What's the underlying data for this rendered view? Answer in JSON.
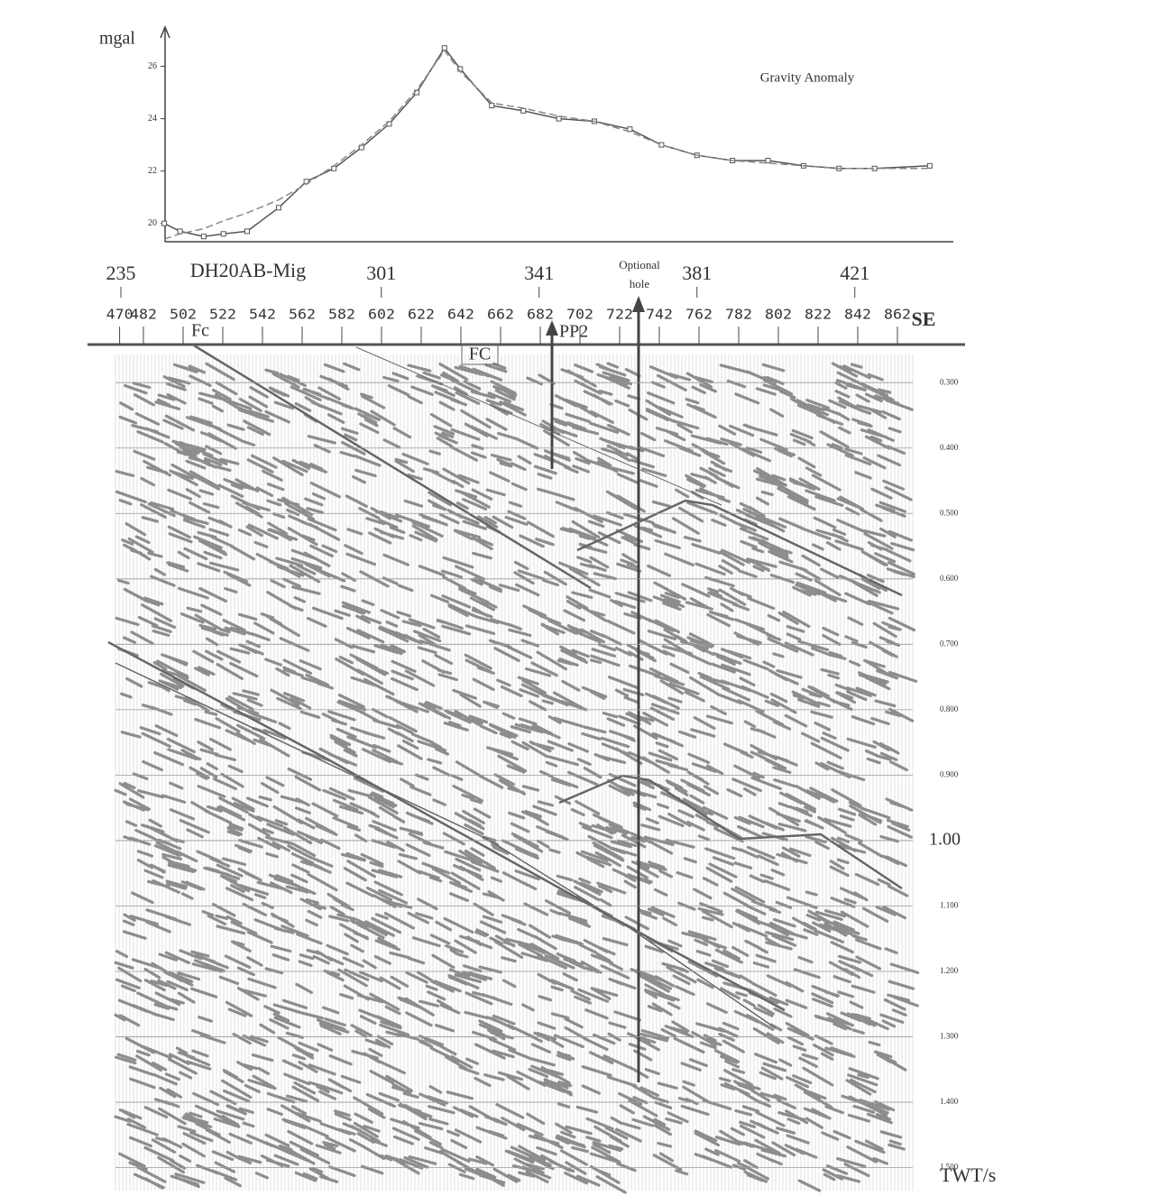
{
  "chart_data": {
    "type": "line",
    "y_label": "mgal",
    "title": "Gravity Anomaly",
    "x": [
      246,
      250,
      256,
      261,
      267,
      275,
      282,
      289,
      296,
      303,
      310,
      317,
      321,
      329,
      337,
      346,
      355,
      364,
      372,
      381,
      390,
      399,
      408,
      417,
      426,
      440
    ],
    "series": [
      {
        "color": "#555555",
        "marker": "square",
        "values": [
          20.0,
          19.7,
          19.5,
          19.6,
          19.7,
          20.6,
          21.6,
          22.1,
          22.9,
          23.8,
          25.0,
          26.7,
          25.9,
          24.5,
          24.3,
          24.0,
          23.9,
          23.6,
          23.0,
          22.6,
          22.4,
          22.4,
          22.2,
          22.1,
          22.1,
          22.2
        ]
      },
      {
        "color": "#888888",
        "dashed": true,
        "values": [
          19.4,
          19.6,
          19.8,
          20.1,
          20.4,
          20.9,
          21.5,
          22.2,
          23.0,
          23.9,
          25.1,
          26.6,
          25.8,
          24.6,
          24.4,
          24.1,
          23.9,
          23.5,
          23.0,
          22.6,
          22.4,
          22.3,
          22.2,
          22.1,
          22.1,
          22.1
        ]
      }
    ],
    "xlim": [
      246,
      446
    ],
    "ylim": [
      19.3,
      27.5
    ],
    "yticks": [
      20,
      22,
      24,
      26
    ]
  },
  "section": {
    "name": "DH20AB-Mig",
    "direction": "SE",
    "station_ticks": [
      235,
      301,
      341,
      381,
      421
    ],
    "cdp_ticks": [
      470,
      482,
      502,
      522,
      542,
      562,
      582,
      602,
      622,
      642,
      662,
      682,
      702,
      722,
      742,
      762,
      782,
      802,
      822,
      842,
      862
    ],
    "twt_ticks": [
      {
        "value": 0.3,
        "label": "0.300"
      },
      {
        "value": 0.4,
        "label": "0.400"
      },
      {
        "value": 0.5,
        "label": "0.500"
      },
      {
        "value": 0.6,
        "label": "0.600"
      },
      {
        "value": 0.7,
        "label": "0.700"
      },
      {
        "value": 0.8,
        "label": "0.800"
      },
      {
        "value": 0.9,
        "label": "0.900"
      },
      {
        "value": 1.0,
        "label": "1.00"
      },
      {
        "value": 1.1,
        "label": "1.100"
      },
      {
        "value": 1.2,
        "label": "1.200"
      },
      {
        "value": 1.3,
        "label": "1.300"
      },
      {
        "value": 1.4,
        "label": "1.400"
      },
      {
        "value": 1.5,
        "label": "1.500"
      }
    ],
    "twt_lim": [
      0.257,
      1.535
    ],
    "twt_label": "TWT/s",
    "fault_labels": [
      "Fc",
      "FC"
    ],
    "well": "PP2",
    "hole_label": [
      "Optional",
      "hole"
    ]
  }
}
